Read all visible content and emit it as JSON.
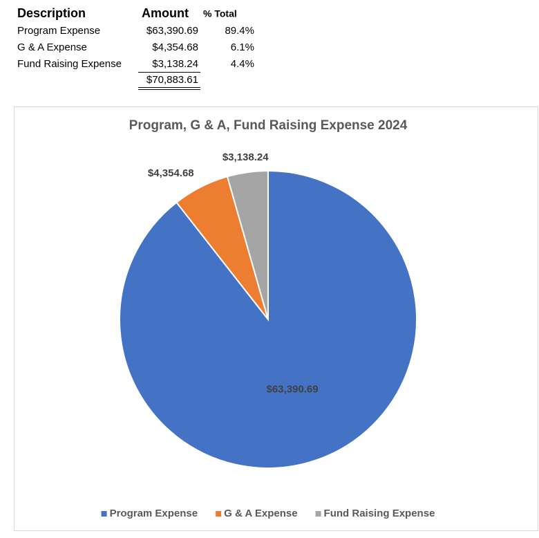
{
  "table": {
    "headers": [
      "Description",
      "Amount",
      "% Total"
    ],
    "rows": [
      [
        "Program Expense",
        "$63,390.69",
        "89.4%"
      ],
      [
        "G & A Expense",
        "$4,354.68",
        "6.1%"
      ],
      [
        "Fund Raising Expense",
        "$3,138.24",
        "4.4%"
      ]
    ],
    "total": "$70,883.61"
  },
  "chart_data": {
    "type": "pie",
    "title": "Program, G & A, Fund Raising Expense 2024",
    "categories": [
      "Program Expense",
      "G & A Expense",
      "Fund Raising Expense"
    ],
    "values": [
      63390.69,
      4354.68,
      3138.24
    ],
    "value_labels": [
      "$63,390.69",
      "$4,354.68",
      "$3,138.24"
    ],
    "colors": [
      "#4472c4",
      "#ed7d31",
      "#a5a5a5"
    ],
    "legend": "bottom"
  }
}
